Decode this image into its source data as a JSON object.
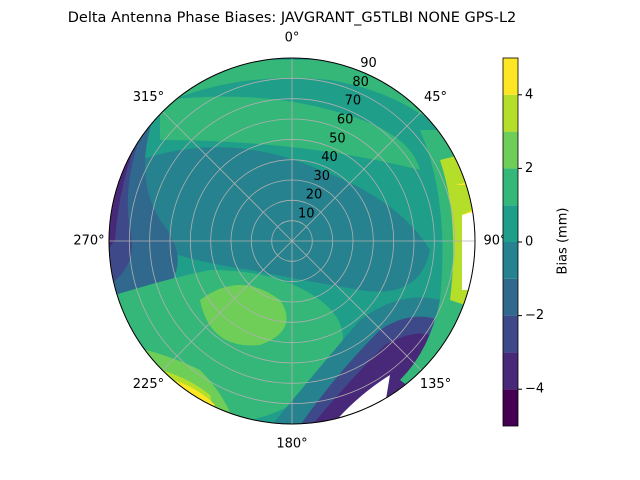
{
  "chart_data": {
    "type": "polar-contour",
    "title": "Delta Antenna Phase Biases: JAVGRANT_G5TLBI NONE GPS-L2",
    "thetaticks": [
      {
        "value": 0,
        "label": "0°"
      },
      {
        "value": 45,
        "label": "45°"
      },
      {
        "value": 90,
        "label": "90°"
      },
      {
        "value": 135,
        "label": "135°"
      },
      {
        "value": 180,
        "label": "180°"
      },
      {
        "value": 225,
        "label": "225°"
      },
      {
        "value": 270,
        "label": "270°"
      },
      {
        "value": 315,
        "label": "315°"
      }
    ],
    "rlim": [
      0,
      90
    ],
    "rticks": [
      10,
      20,
      30,
      40,
      50,
      60,
      70,
      80,
      90
    ],
    "grid": true,
    "colorbar": {
      "label": "Bias (mm)",
      "levels": [
        -5,
        -4,
        -3,
        -2,
        -1,
        0,
        1,
        2,
        3,
        4,
        5
      ],
      "colors": [
        "#440154",
        "#482878",
        "#3e4989",
        "#31688e",
        "#26828e",
        "#1f9e89",
        "#35b779",
        "#6ece58",
        "#b5de2b",
        "#fde725"
      ],
      "ticks": [
        {
          "value": -4,
          "label": "−4"
        },
        {
          "value": -2,
          "label": "−2"
        },
        {
          "value": 0,
          "label": "0"
        },
        {
          "value": 2,
          "label": "2"
        },
        {
          "value": 4,
          "label": "4"
        }
      ]
    }
  }
}
